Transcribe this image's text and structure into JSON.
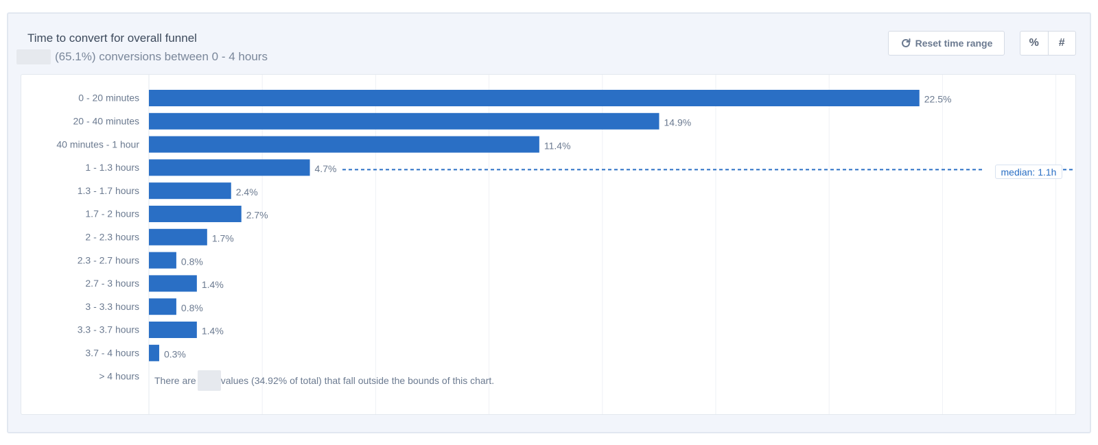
{
  "header": {
    "title": "Time to convert for overall funnel",
    "subtitle": "(65.1%) conversions between 0 - 4 hours"
  },
  "controls": {
    "reset_label": "Reset time range",
    "percent_label": "%",
    "count_label": "#"
  },
  "colors": {
    "bar": "#2a6fc5",
    "median_line": "#2a6fc5",
    "grid": "#eef1f5"
  },
  "chart_data": {
    "type": "bar",
    "orientation": "horizontal",
    "categories": [
      "0 - 20 minutes",
      "20 - 40 minutes",
      "40 minutes - 1 hour",
      "1 - 1.3 hours",
      "1.3 - 1.7 hours",
      "1.7 - 2 hours",
      "2 - 2.3 hours",
      "2.3 - 2.7 hours",
      "2.7 - 3 hours",
      "3 - 3.3 hours",
      "3.3 - 3.7 hours",
      "3.7 - 4 hours"
    ],
    "values": [
      22.5,
      14.9,
      11.4,
      4.7,
      2.4,
      2.7,
      1.7,
      0.8,
      1.4,
      0.8,
      1.4,
      0.3
    ],
    "value_labels": [
      "22.5%",
      "14.9%",
      "11.4%",
      "4.7%",
      "2.4%",
      "2.7%",
      "1.7%",
      "0.8%",
      "1.4%",
      "0.8%",
      "1.4%",
      "0.3%"
    ],
    "overflow_category": "> 4 hours",
    "overflow_note_prefix": "There are",
    "overflow_note_suffix": "values (34.92% of total) that fall outside the bounds of this chart.",
    "median_label": "median: 1.1h",
    "median_category": "1 - 1.3 hours",
    "grid": true
  }
}
